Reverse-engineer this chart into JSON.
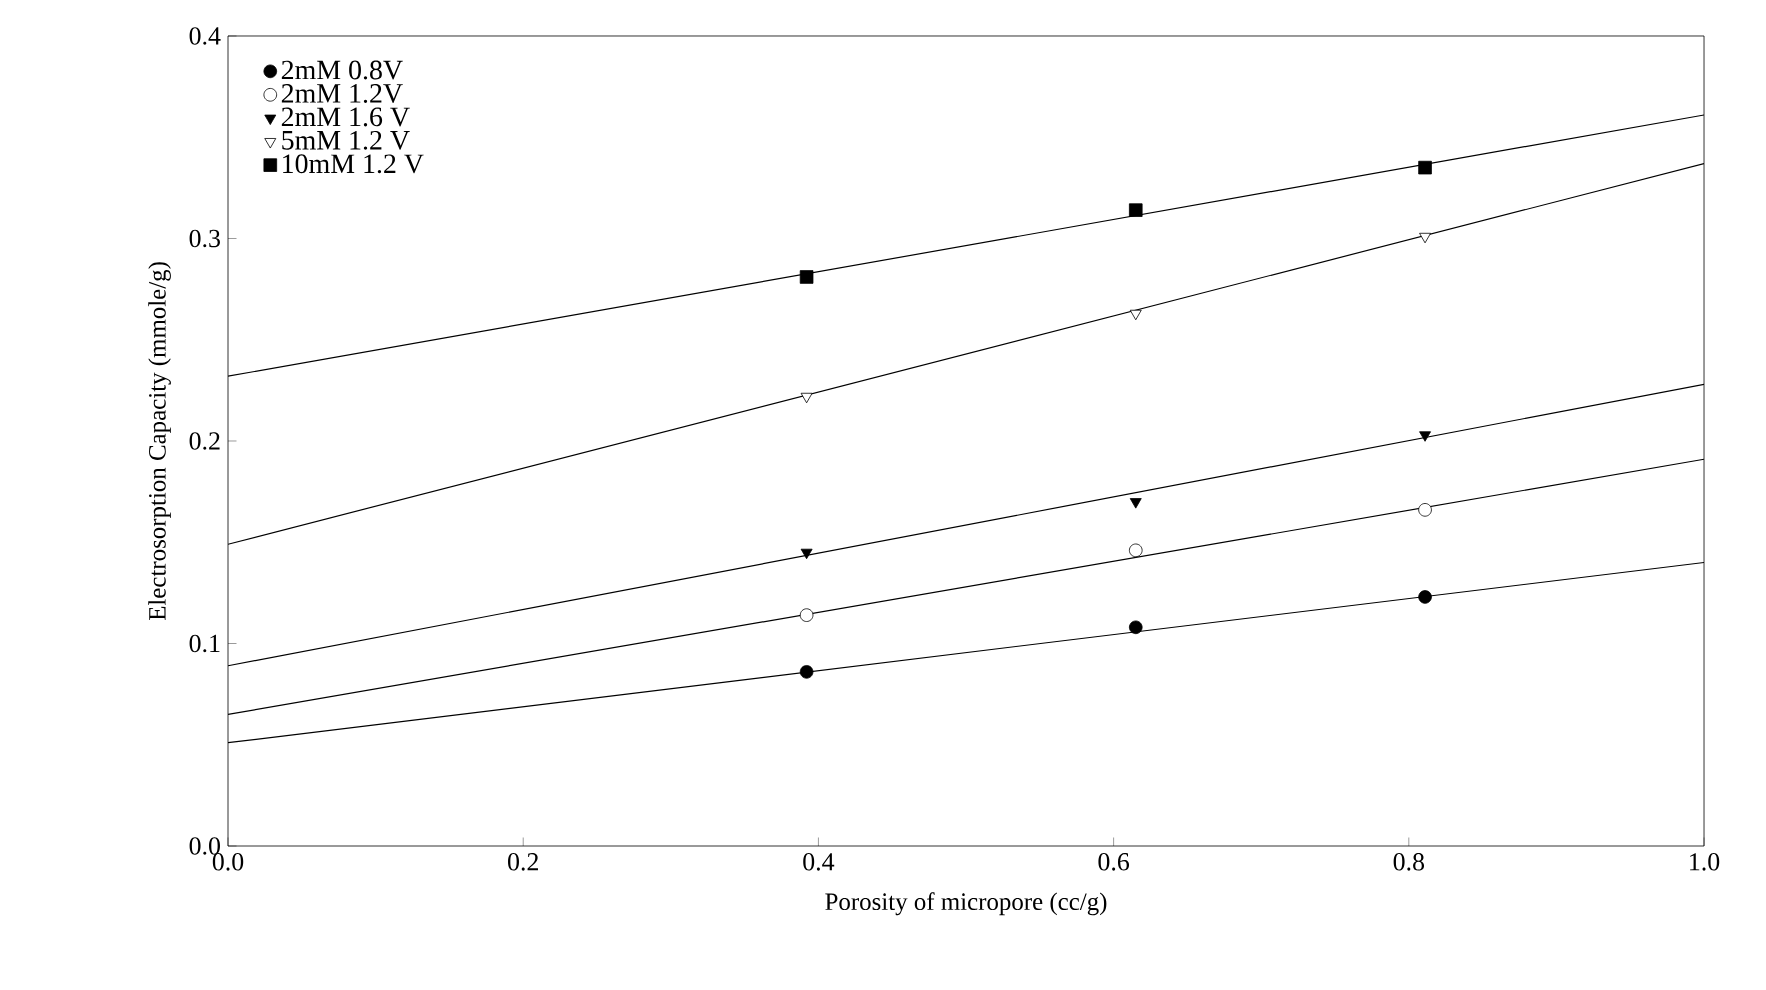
{
  "chart_data": {
    "type": "scatter",
    "xlabel": "Porosity of micropore (cc/g)",
    "ylabel": "Electrosorption Capacity (mmole/g)",
    "xlim": [
      0,
      1
    ],
    "ylim": [
      0,
      0.4
    ],
    "xticks": [
      {
        "value": 0,
        "label": "0.0"
      },
      0.2,
      0.4,
      0.6,
      0.8,
      {
        "value": 1,
        "label": "1.0"
      }
    ],
    "yticks": [
      {
        "value": 0,
        "label": "0.0"
      },
      0.1,
      0.2,
      0.3,
      0.4
    ],
    "grid": false,
    "legend": "top left",
    "series": [
      {
        "name": "2mM 0.8V",
        "marker": "circle",
        "color": "#000000",
        "x": [
          0.392,
          0.615,
          0.811
        ],
        "values": [
          0.086,
          0.108,
          0.123
        ]
      },
      {
        "name": "2mM  1.2V",
        "marker": "circle",
        "color": "#ffffff",
        "x": [
          0.392,
          0.615,
          0.811
        ],
        "values": [
          0.114,
          0.146,
          0.166
        ]
      },
      {
        "name": "2mM 1.6 V",
        "marker": "triangle",
        "color": "#000000",
        "x": [
          0.392,
          0.615,
          0.811
        ],
        "values": [
          0.145,
          0.17,
          0.203
        ]
      },
      {
        "name": "5mM 1.2 V",
        "marker": "triangle",
        "color": "#ffffff",
        "x": [
          0.392,
          0.615,
          0.811
        ],
        "values": [
          0.222,
          0.263,
          0.301
        ]
      },
      {
        "name": "10mM 1.2 V",
        "marker": "square",
        "color": "#000000",
        "x": [
          0.392,
          0.615,
          0.811
        ],
        "values": [
          0.281,
          0.314,
          0.335
        ]
      },
      {
        "type": "line",
        "marker": "none",
        "line_style": "solid",
        "color": "#000000",
        "x": [
          0,
          1
        ],
        "values": [
          0.051,
          0.14
        ]
      },
      {
        "type": "line",
        "marker": "none",
        "line_style": "solid",
        "color": "#000000",
        "x": [
          0,
          1
        ],
        "values": [
          0.065,
          0.191
        ]
      },
      {
        "type": "line",
        "marker": "none",
        "line_style": "solid",
        "color": "#000000",
        "x": [
          0,
          1
        ],
        "values": [
          0.089,
          0.228
        ]
      },
      {
        "type": "line",
        "marker": "none",
        "line_style": "solid",
        "color": "#000000",
        "x": [
          0,
          1
        ],
        "values": [
          0.149,
          0.337
        ]
      },
      {
        "type": "line",
        "marker": "none",
        "line_style": "solid",
        "color": "#000000",
        "x": [
          0,
          1
        ],
        "values": [
          0.232,
          0.361
        ]
      }
    ]
  }
}
